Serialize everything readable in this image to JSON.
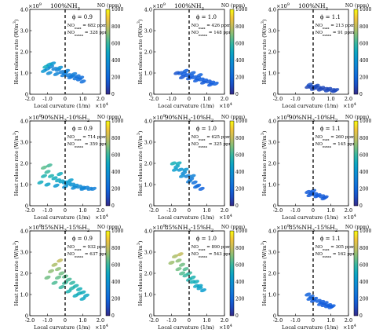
{
  "figure": {
    "y_exponent_prefix": "×10",
    "y_exponent_power": "9",
    "x_exponent_suffix": "×10",
    "x_exponent_power": "4",
    "ylabel": "Heat release rate (W/m",
    "ylabel_sup": "3",
    "ylabel_end": ")",
    "xlabel": "Local curvature (1/m)",
    "colorbar_title": "NO (ppm)",
    "colorbar_ticks": [
      "0",
      "200",
      "400",
      "600",
      "800",
      "1000"
    ],
    "x_ticks": [
      "-2.0",
      "-1.0",
      "0",
      "1.0",
      "2.0"
    ],
    "y_ticks": [
      "0",
      "1.0",
      "2.0",
      "3.0",
      "4.0"
    ]
  },
  "chart_data": [
    {
      "type": "scatter",
      "title": "100%NH",
      "title_sub": "3",
      "title_rest": "",
      "phi": "ϕ = 0.9",
      "no_max": "NO",
      "no_max_sub": "max",
      "no_max_val": " = 682 ppm",
      "no_mean": "NO",
      "no_mean_sub": "mean",
      "no_mean_val": " = 328 ppm",
      "xlim": [
        -2,
        2
      ],
      "ylim": [
        0,
        4
      ],
      "cmap_range": [
        0,
        1000
      ],
      "points": [
        [
          -1.2,
          1.1,
          420
        ],
        [
          -1.0,
          1.2,
          380
        ],
        [
          -0.8,
          1.3,
          350
        ],
        [
          -0.6,
          1.2,
          330
        ],
        [
          -0.4,
          1.15,
          320
        ],
        [
          -0.2,
          1.05,
          300
        ],
        [
          0.0,
          1.0,
          310
        ],
        [
          0.2,
          0.9,
          290
        ],
        [
          0.4,
          0.85,
          280
        ],
        [
          0.6,
          0.75,
          260
        ],
        [
          0.8,
          0.7,
          240
        ],
        [
          1.0,
          0.6,
          230
        ],
        [
          -0.9,
          1.0,
          360
        ],
        [
          -0.5,
          0.95,
          340
        ],
        [
          -0.1,
          0.9,
          300
        ],
        [
          0.3,
          0.8,
          270
        ],
        [
          -0.7,
          1.45,
          420
        ],
        [
          -0.3,
          1.25,
          400
        ],
        [
          0.1,
          1.1,
          320
        ],
        [
          0.5,
          0.95,
          300
        ],
        [
          -1.1,
          1.3,
          520
        ],
        [
          -0.9,
          1.4,
          480
        ],
        [
          0.7,
          0.85,
          250
        ],
        [
          0.9,
          0.78,
          230
        ]
      ]
    },
    {
      "type": "scatter",
      "title": "100%NH",
      "title_sub": "3",
      "title_rest": "",
      "phi": "ϕ = 1.0",
      "no_max": "NO",
      "no_max_sub": "max",
      "no_max_val": " = 426 ppm",
      "no_mean": "NO",
      "no_mean_sub": "mean",
      "no_mean_val": " = 148 ppm",
      "xlim": [
        -2,
        2
      ],
      "ylim": [
        0,
        4
      ],
      "cmap_range": [
        0,
        1000
      ],
      "points": [
        [
          -0.7,
          1.0,
          120
        ],
        [
          -0.5,
          1.0,
          140
        ],
        [
          -0.3,
          0.95,
          150
        ],
        [
          -0.1,
          0.9,
          145
        ],
        [
          0.1,
          0.85,
          150
        ],
        [
          0.3,
          0.8,
          160
        ],
        [
          0.5,
          0.75,
          170
        ],
        [
          0.7,
          0.7,
          160
        ],
        [
          0.9,
          0.65,
          150
        ],
        [
          1.1,
          0.6,
          140
        ],
        [
          1.3,
          0.55,
          150
        ],
        [
          1.5,
          0.5,
          170
        ],
        [
          -0.4,
          0.8,
          130
        ],
        [
          0.0,
          0.75,
          140
        ],
        [
          0.4,
          0.65,
          150
        ],
        [
          0.8,
          0.55,
          140
        ],
        [
          1.2,
          0.45,
          150
        ],
        [
          -0.2,
          1.1,
          160
        ],
        [
          0.2,
          1.0,
          180
        ],
        [
          0.6,
          0.9,
          170
        ]
      ]
    },
    {
      "type": "scatter",
      "title": "100%NH",
      "title_sub": "3",
      "title_rest": "",
      "phi": "ϕ = 1.1",
      "no_max": "NO",
      "no_max_sub": "max",
      "no_max_val": " = 213 ppm",
      "no_mean": "NO",
      "no_mean_sub": "mean",
      "no_mean_val": " = 91 ppm",
      "xlim": [
        -2,
        2
      ],
      "ylim": [
        0,
        4
      ],
      "cmap_range": [
        0,
        1000
      ],
      "points": [
        [
          -0.3,
          0.35,
          80
        ],
        [
          -0.1,
          0.35,
          90
        ],
        [
          0.1,
          0.35,
          100
        ],
        [
          0.3,
          0.3,
          95
        ],
        [
          0.5,
          0.3,
          90
        ],
        [
          0.7,
          0.25,
          85
        ],
        [
          0.9,
          0.25,
          90
        ],
        [
          1.1,
          0.2,
          95
        ],
        [
          1.3,
          0.2,
          100
        ],
        [
          0.0,
          0.25,
          85
        ],
        [
          0.4,
          0.22,
          90
        ],
        [
          0.8,
          0.18,
          95
        ],
        [
          1.2,
          0.15,
          90
        ],
        [
          -0.2,
          0.45,
          110
        ],
        [
          0.2,
          0.4,
          100
        ]
      ]
    },
    {
      "type": "scatter",
      "title": "90%NH",
      "title_sub": "3",
      "title_rest": "-10%H",
      "title_sub2": "2",
      "phi": "ϕ = 0.9",
      "no_max": "NO",
      "no_max_sub": "max",
      "no_max_val": " = 714 ppm",
      "no_mean": "NO",
      "no_mean_sub": "mean",
      "no_mean_val": " = 359 ppm",
      "xlim": [
        -2,
        2
      ],
      "ylim": [
        0,
        4
      ],
      "cmap_range": [
        0,
        1000
      ],
      "points": [
        [
          -1.4,
          1.1,
          520
        ],
        [
          -1.2,
          1.4,
          560
        ],
        [
          -1.0,
          1.6,
          600
        ],
        [
          -0.8,
          1.4,
          560
        ],
        [
          -0.6,
          1.3,
          520
        ],
        [
          -0.4,
          1.2,
          500
        ],
        [
          -0.2,
          1.15,
          480
        ],
        [
          0.0,
          1.1,
          440
        ],
        [
          0.2,
          1.05,
          420
        ],
        [
          0.4,
          1.0,
          400
        ],
        [
          0.6,
          0.95,
          380
        ],
        [
          0.8,
          0.9,
          360
        ],
        [
          1.0,
          0.85,
          340
        ],
        [
          1.2,
          0.85,
          330
        ],
        [
          1.4,
          0.8,
          320
        ],
        [
          1.6,
          0.8,
          310
        ],
        [
          -1.0,
          1.0,
          480
        ],
        [
          -0.5,
          0.95,
          430
        ],
        [
          0.0,
          0.9,
          400
        ],
        [
          0.5,
          0.85,
          370
        ],
        [
          1.0,
          0.8,
          340
        ],
        [
          -1.2,
          1.8,
          650
        ],
        [
          -0.9,
          1.9,
          620
        ],
        [
          -0.3,
          1.5,
          520
        ],
        [
          0.3,
          1.2,
          460
        ]
      ]
    },
    {
      "type": "scatter",
      "title": "90%NH",
      "title_sub": "3",
      "title_rest": "-10%H",
      "title_sub2": "2",
      "phi": "ϕ = 1.0",
      "no_max": "NO",
      "no_max_sub": "max",
      "no_max_val": " = 625 ppm",
      "no_mean": "NO",
      "no_mean_sub": "mean",
      "no_mean_val": " = 325 ppm",
      "xlim": [
        -2,
        2
      ],
      "ylim": [
        0,
        4
      ],
      "cmap_range": [
        0,
        1000
      ],
      "points": [
        [
          -0.9,
          2.0,
          540
        ],
        [
          -0.7,
          1.85,
          480
        ],
        [
          -0.5,
          1.7,
          420
        ],
        [
          -0.3,
          1.55,
          360
        ],
        [
          -0.1,
          1.4,
          320
        ],
        [
          0.1,
          1.25,
          280
        ],
        [
          0.3,
          1.1,
          240
        ],
        [
          0.5,
          0.95,
          200
        ],
        [
          0.7,
          0.8,
          180
        ],
        [
          -0.8,
          1.7,
          460
        ],
        [
          -0.4,
          1.4,
          380
        ],
        [
          0.0,
          1.15,
          300
        ],
        [
          0.4,
          0.9,
          220
        ],
        [
          -0.6,
          2.0,
          520
        ],
        [
          -0.2,
          1.7,
          420
        ],
        [
          0.2,
          1.4,
          320
        ]
      ]
    },
    {
      "type": "scatter",
      "title": "90%NH",
      "title_sub": "3",
      "title_rest": "-10%H",
      "title_sub2": "2",
      "phi": "ϕ = 1.1",
      "no_max": "NO",
      "no_max_sub": "max",
      "no_max_val": " = 260 ppm",
      "no_mean": "NO",
      "no_mean_sub": "mean",
      "no_mean_val": " = 145 ppm",
      "xlim": [
        -2,
        2
      ],
      "ylim": [
        0,
        4
      ],
      "cmap_range": [
        0,
        1000
      ],
      "points": [
        [
          -0.3,
          0.65,
          140
        ],
        [
          -0.1,
          0.6,
          150
        ],
        [
          0.1,
          0.55,
          150
        ],
        [
          0.3,
          0.5,
          145
        ],
        [
          0.5,
          0.45,
          140
        ],
        [
          0.7,
          0.4,
          135
        ],
        [
          -0.2,
          0.5,
          140
        ],
        [
          0.2,
          0.45,
          150
        ],
        [
          0.6,
          0.35,
          140
        ],
        [
          0.0,
          0.7,
          160
        ]
      ]
    },
    {
      "type": "scatter",
      "title": "85%NH",
      "title_sub": "3",
      "title_rest": "-15%H",
      "title_sub2": "2",
      "phi": "ϕ = 0.9",
      "no_max": "NO",
      "no_max_sub": "max",
      "no_max_val": " = 932 ppm",
      "no_mean": "NO",
      "no_mean_sub": "mean",
      "no_mean_val": " = 637 ppm",
      "xlim": [
        -2,
        2
      ],
      "ylim": [
        0,
        4
      ],
      "cmap_range": [
        0,
        1000
      ],
      "points": [
        [
          -0.6,
          2.4,
          760
        ],
        [
          -0.4,
          2.2,
          720
        ],
        [
          -0.2,
          2.0,
          680
        ],
        [
          0.0,
          1.85,
          650
        ],
        [
          0.2,
          1.7,
          620
        ],
        [
          0.4,
          1.55,
          590
        ],
        [
          0.6,
          1.4,
          560
        ],
        [
          0.8,
          1.25,
          540
        ],
        [
          1.0,
          1.1,
          520
        ],
        [
          1.2,
          0.95,
          500
        ],
        [
          -0.8,
          2.1,
          720
        ],
        [
          -0.4,
          1.8,
          660
        ],
        [
          0.0,
          1.55,
          610
        ],
        [
          0.4,
          1.3,
          570
        ],
        [
          0.8,
          1.05,
          530
        ],
        [
          -1.0,
          1.8,
          680
        ],
        [
          -0.6,
          1.55,
          630
        ],
        [
          -0.2,
          1.35,
          600
        ],
        [
          0.2,
          1.15,
          560
        ],
        [
          0.6,
          0.95,
          520
        ],
        [
          1.0,
          0.8,
          500
        ],
        [
          -0.3,
          2.6,
          800
        ]
      ]
    },
    {
      "type": "scatter",
      "title": "85%NH",
      "title_sub": "3",
      "title_rest": "-15%H",
      "title_sub2": "2",
      "phi": "ϕ = 1.0",
      "no_max": "NO",
      "no_max_sub": "max",
      "no_max_val": " = 890 ppm",
      "no_mean": "NO",
      "no_mean_sub": "mean",
      "no_mean_val": " = 543 ppm",
      "xlim": [
        -2,
        2
      ],
      "ylim": [
        0,
        4
      ],
      "cmap_range": [
        0,
        1000
      ],
      "points": [
        [
          -0.8,
          2.8,
          760
        ],
        [
          -0.6,
          2.6,
          720
        ],
        [
          -0.4,
          2.4,
          680
        ],
        [
          -0.2,
          2.2,
          640
        ],
        [
          0.0,
          2.0,
          600
        ],
        [
          0.2,
          1.8,
          560
        ],
        [
          0.4,
          1.6,
          520
        ],
        [
          0.6,
          1.4,
          480
        ],
        [
          0.8,
          1.2,
          450
        ],
        [
          -0.6,
          2.2,
          680
        ],
        [
          -0.2,
          1.9,
          600
        ],
        [
          0.2,
          1.6,
          540
        ],
        [
          0.6,
          1.3,
          480
        ],
        [
          -1.0,
          2.5,
          740
        ],
        [
          -0.4,
          2.0,
          640
        ],
        [
          0.0,
          1.7,
          560
        ],
        [
          0.4,
          1.4,
          500
        ],
        [
          -0.5,
          2.9,
          800
        ]
      ]
    },
    {
      "type": "scatter",
      "title": "85%NH",
      "title_sub": "3",
      "title_rest": "-15%H",
      "title_sub2": "2",
      "phi": "ϕ = 1.1",
      "no_max": "NO",
      "no_max_sub": "max",
      "no_max_val": " = 305 ppm",
      "no_mean": "NO",
      "no_mean_sub": "mean",
      "no_mean_val": " = 162 ppm",
      "xlim": [
        -2,
        2
      ],
      "ylim": [
        0,
        4
      ],
      "cmap_range": [
        0,
        1000
      ],
      "points": [
        [
          -0.3,
          1.0,
          180
        ],
        [
          -0.1,
          0.9,
          170
        ],
        [
          0.1,
          0.8,
          160
        ],
        [
          0.3,
          0.7,
          160
        ],
        [
          0.5,
          0.65,
          150
        ],
        [
          0.7,
          0.6,
          150
        ],
        [
          0.9,
          0.5,
          160
        ],
        [
          1.1,
          0.45,
          170
        ],
        [
          0.0,
          0.7,
          150
        ],
        [
          0.4,
          0.55,
          150
        ],
        [
          0.8,
          0.45,
          160
        ],
        [
          -0.2,
          0.8,
          170
        ],
        [
          0.6,
          0.5,
          140
        ],
        [
          1.0,
          0.4,
          150
        ]
      ]
    }
  ]
}
